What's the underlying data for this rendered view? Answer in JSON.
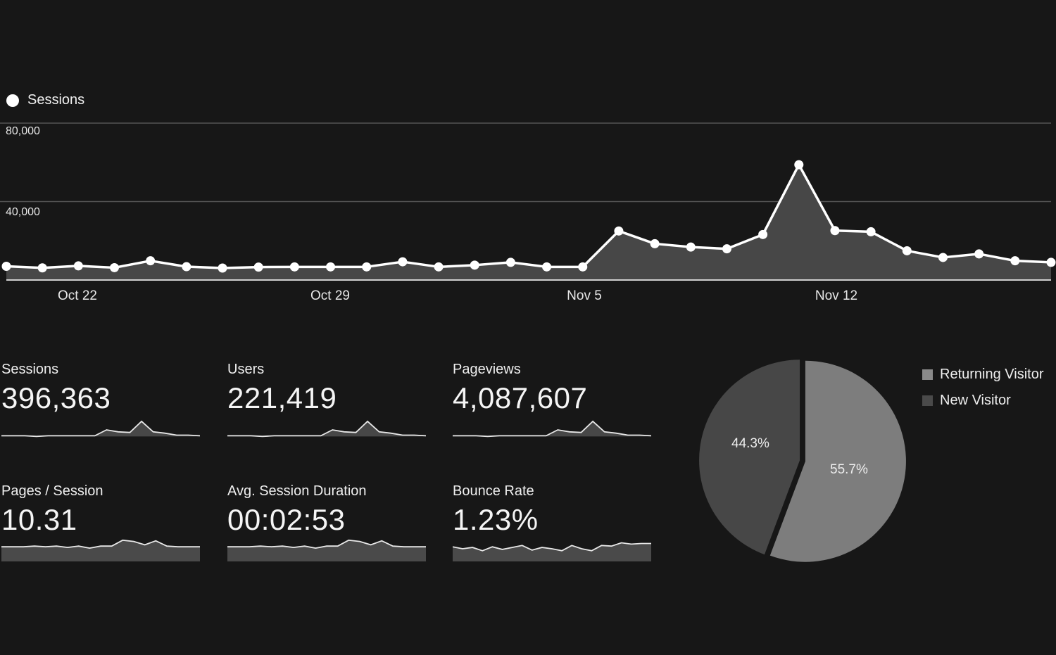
{
  "colors": {
    "background": "#171717",
    "line": "#ffffff",
    "area_fill": "#474747",
    "gridline": "#555555",
    "returning_visitor": "#7d7d7d",
    "new_visitor": "#474747"
  },
  "chart_data": [
    {
      "type": "area",
      "series": [
        {
          "name": "Sessions",
          "values": [
            7000,
            6200,
            7200,
            6300,
            9800,
            6800,
            6100,
            6600,
            6700,
            6700,
            6700,
            9300,
            6700,
            7600,
            9000,
            6700,
            6700,
            25000,
            18500,
            16800,
            15900,
            23200,
            58800,
            25200,
            24600,
            14900,
            11500,
            13300,
            9800,
            9000
          ]
        }
      ],
      "x_tick_labels": [
        "Oct 22",
        "Oct 29",
        "Nov 5",
        "Nov 12"
      ],
      "ylim": [
        0,
        80000
      ],
      "y_ticks": [
        "80,000",
        "40,000"
      ],
      "grid": true,
      "legend": "top-left"
    },
    {
      "type": "pie",
      "categories": [
        "Returning Visitor",
        "New Visitor"
      ],
      "values": [
        55.7,
        44.3
      ],
      "labels": [
        "55.7%",
        "44.3%"
      ],
      "legend": "right"
    }
  ],
  "metrics": [
    {
      "label": "Sessions",
      "value": "396,363",
      "spark": [
        6,
        6,
        6,
        5,
        6,
        6,
        6,
        6,
        6,
        15,
        12,
        11,
        28,
        12,
        10,
        7,
        7,
        6
      ],
      "style": "line"
    },
    {
      "label": "Users",
      "value": "221,419",
      "spark": [
        6,
        6,
        6,
        5,
        6,
        6,
        6,
        6,
        6,
        15,
        12,
        11,
        28,
        12,
        10,
        7,
        7,
        6
      ],
      "style": "line"
    },
    {
      "label": "Pageviews",
      "value": "4,087,607",
      "spark": [
        6,
        6,
        6,
        5,
        6,
        6,
        6,
        6,
        6,
        15,
        12,
        11,
        28,
        12,
        10,
        7,
        7,
        6
      ],
      "style": "line"
    },
    {
      "label": "Pages / Session",
      "value": "10.31",
      "spark": [
        20,
        20,
        20,
        21,
        20,
        21,
        19,
        21,
        18,
        21,
        21,
        30,
        28,
        23,
        29,
        21,
        20,
        20,
        20
      ],
      "style": "band"
    },
    {
      "label": "Avg. Session Duration",
      "value": "00:02:53",
      "spark": [
        20,
        20,
        20,
        21,
        20,
        21,
        19,
        21,
        18,
        21,
        21,
        30,
        28,
        23,
        29,
        21,
        20,
        20,
        20
      ],
      "style": "band"
    },
    {
      "label": "Bounce Rate",
      "value": "1.23%",
      "spark": [
        20,
        17,
        19,
        14,
        20,
        16,
        19,
        22,
        15,
        19,
        17,
        14,
        22,
        17,
        14,
        22,
        21,
        26,
        24,
        25,
        25
      ],
      "style": "band"
    }
  ],
  "pie_legend": [
    "Returning Visitor",
    "New Visitor"
  ]
}
